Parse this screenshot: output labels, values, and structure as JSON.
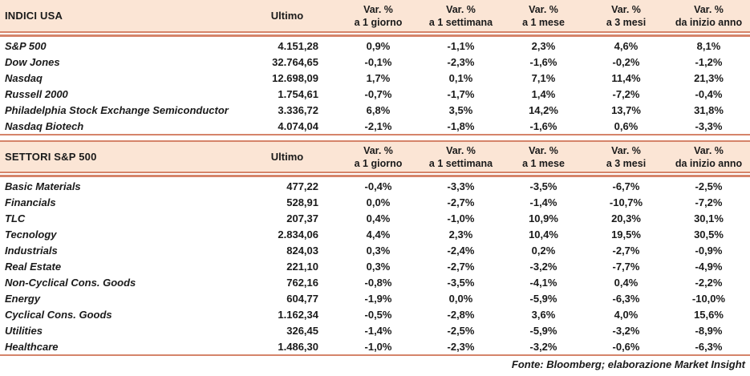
{
  "colors": {
    "band_background": "#FBE5D5",
    "rule_line": "#D5846A",
    "text": "#1A1A1A"
  },
  "header": {
    "ultimo_label": "Ultimo",
    "var_columns": [
      {
        "line1": "Var. %",
        "line2": "a 1 giorno"
      },
      {
        "line1": "Var. %",
        "line2": "a 1 settimana"
      },
      {
        "line1": "Var. %",
        "line2": "a 1 mese"
      },
      {
        "line1": "Var. %",
        "line2": "a 3 mesi"
      },
      {
        "line1": "Var. %",
        "line2": "da inizio anno"
      }
    ]
  },
  "indici_usa": {
    "title": "INDICI USA",
    "rows": [
      {
        "name": "S&P 500",
        "ultimo": "4.151,28",
        "vars": [
          "0,9%",
          "-1,1%",
          "2,3%",
          "4,6%",
          "8,1%"
        ]
      },
      {
        "name": "Dow Jones",
        "ultimo": "32.764,65",
        "vars": [
          "-0,1%",
          "-2,3%",
          "-1,6%",
          "-0,2%",
          "-1,2%"
        ]
      },
      {
        "name": "Nasdaq",
        "ultimo": "12.698,09",
        "vars": [
          "1,7%",
          "0,1%",
          "7,1%",
          "11,4%",
          "21,3%"
        ]
      },
      {
        "name": "Russell 2000",
        "ultimo": "1.754,61",
        "vars": [
          "-0,7%",
          "-1,7%",
          "1,4%",
          "-7,2%",
          "-0,4%"
        ]
      },
      {
        "name": "Philadelphia Stock Exchange Semiconductor",
        "ultimo": "3.336,72",
        "vars": [
          "6,8%",
          "3,5%",
          "14,2%",
          "13,7%",
          "31,8%"
        ]
      },
      {
        "name": "Nasdaq Biotech",
        "ultimo": "4.074,04",
        "vars": [
          "-2,1%",
          "-1,8%",
          "-1,6%",
          "0,6%",
          "-3,3%"
        ]
      }
    ]
  },
  "settori_sp500": {
    "title": "SETTORI S&P 500",
    "rows": [
      {
        "name": "Basic Materials",
        "ultimo": "477,22",
        "vars": [
          "-0,4%",
          "-3,3%",
          "-3,5%",
          "-6,7%",
          "-2,5%"
        ]
      },
      {
        "name": "Financials",
        "ultimo": "528,91",
        "vars": [
          "0,0%",
          "-2,7%",
          "-1,4%",
          "-10,7%",
          "-7,2%"
        ]
      },
      {
        "name": "TLC",
        "ultimo": "207,37",
        "vars": [
          "0,4%",
          "-1,0%",
          "10,9%",
          "20,3%",
          "30,1%"
        ]
      },
      {
        "name": "Tecnology",
        "ultimo": "2.834,06",
        "vars": [
          "4,4%",
          "2,3%",
          "10,4%",
          "19,5%",
          "30,5%"
        ]
      },
      {
        "name": "Industrials",
        "ultimo": "824,03",
        "vars": [
          "0,3%",
          "-2,4%",
          "0,2%",
          "-2,7%",
          "-0,9%"
        ]
      },
      {
        "name": "Real Estate",
        "ultimo": "221,10",
        "vars": [
          "0,3%",
          "-2,7%",
          "-3,2%",
          "-7,7%",
          "-4,9%"
        ]
      },
      {
        "name": "Non-Cyclical Cons. Goods",
        "ultimo": "762,16",
        "vars": [
          "-0,8%",
          "-3,5%",
          "-4,1%",
          "0,4%",
          "-2,2%"
        ]
      },
      {
        "name": "Energy",
        "ultimo": "604,77",
        "vars": [
          "-1,9%",
          "0,0%",
          "-5,9%",
          "-6,3%",
          "-10,0%"
        ]
      },
      {
        "name": "Cyclical Cons. Goods",
        "ultimo": "1.162,34",
        "vars": [
          "-0,5%",
          "-2,8%",
          "3,6%",
          "4,0%",
          "15,6%"
        ]
      },
      {
        "name": "Utilities",
        "ultimo": "326,45",
        "vars": [
          "-1,4%",
          "-2,5%",
          "-5,9%",
          "-3,2%",
          "-8,9%"
        ]
      },
      {
        "name": "Healthcare",
        "ultimo": "1.486,30",
        "vars": [
          "-1,0%",
          "-2,3%",
          "-3,2%",
          "-0,6%",
          "-6,3%"
        ]
      }
    ]
  },
  "footer": {
    "source": "Fonte: Bloomberg; elaborazione Market Insight"
  }
}
